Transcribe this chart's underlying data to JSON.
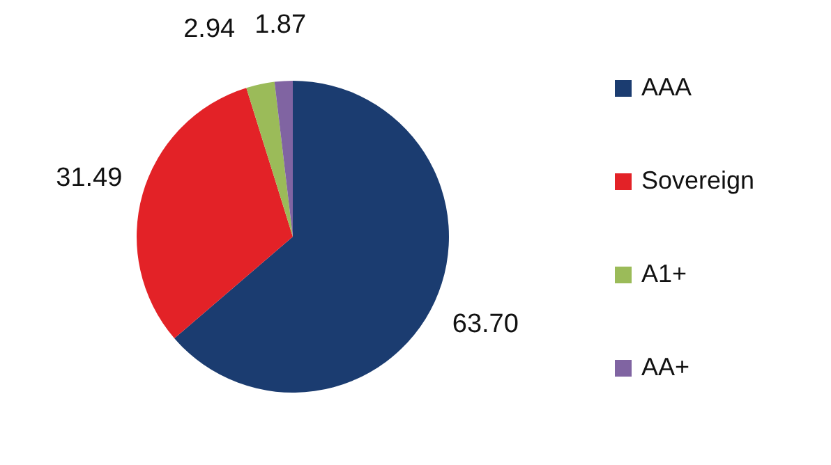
{
  "chart_data": {
    "type": "pie",
    "categories": [
      "AAA",
      "Sovereign",
      "A1+",
      "AA+"
    ],
    "values": [
      63.7,
      31.49,
      2.94,
      1.87
    ],
    "value_labels": [
      "63.70",
      "31.49",
      "2.94",
      "1.87"
    ],
    "colors": [
      "#1b3c70",
      "#e32227",
      "#9bbb59",
      "#8064a2"
    ],
    "legend": "right"
  }
}
